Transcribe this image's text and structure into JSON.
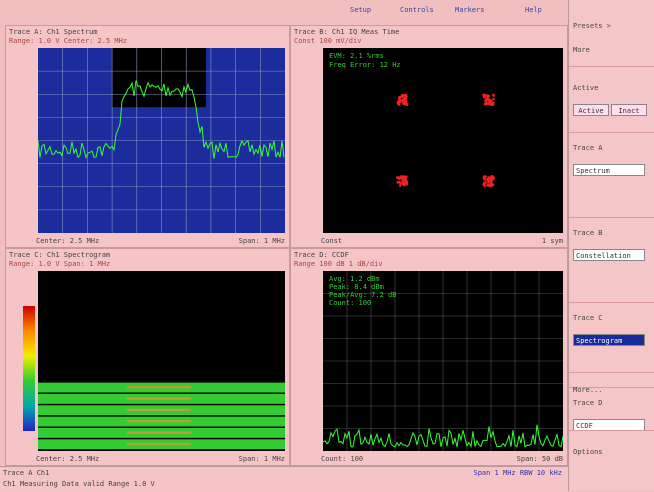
{
  "menu": [
    "Setup",
    "Controls",
    "Markers",
    "Help"
  ],
  "panels": [
    {
      "header": "Trace A: Ch1 Spectrum",
      "subheader": "Range: 1.0 V  Center: 2.5 MHz",
      "footer_left": "Center: 2.5 MHz",
      "footer_right": "Span: 1 MHz"
    },
    {
      "header": "Trace B: Ch1 IQ Meas Time",
      "subheader": "Const  100 mV/div",
      "footer_left": "Const",
      "footer_right": "1 sym"
    },
    {
      "header": "Trace C: Ch1 Spectrogram",
      "subheader": "Range: 1.0 V  Span: 1 MHz",
      "footer_left": "Center: 2.5 MHz",
      "footer_right": "Span: 1 MHz"
    },
    {
      "header": "Trace D: CCDF",
      "subheader": "Range  100 dB  1 dB/div",
      "footer_left": "Count: 100",
      "footer_right": "Span: 50 dB"
    }
  ],
  "overlay_b": [
    "EVM: 2.1 %rms",
    "Freq Error: 12 Hz"
  ],
  "overlay_d": [
    "Avg: 1.2 dBm",
    "Peak: 8.4 dBm",
    "Peak/Avg: 7.2 dB",
    "Count: 100"
  ],
  "sidebar": {
    "title": "Presets >",
    "more": "More",
    "active": "Active",
    "buttons": [
      "Active",
      "Inact"
    ],
    "traces": [
      {
        "label": "Trace A",
        "value": "Spectrum"
      },
      {
        "label": "Trace B",
        "value": "Constellation"
      },
      {
        "label": "Trace C",
        "value": "Spectrogram"
      },
      {
        "label": "Trace D",
        "value": "CCDF"
      }
    ],
    "more2": "More...",
    "options": "Options"
  },
  "status": {
    "line1": "Trace A Ch1",
    "line2": "Ch1 Measuring  Data valid  Range 1.0 V",
    "right": "Span 1 MHz  RBW 10 kHz"
  }
}
